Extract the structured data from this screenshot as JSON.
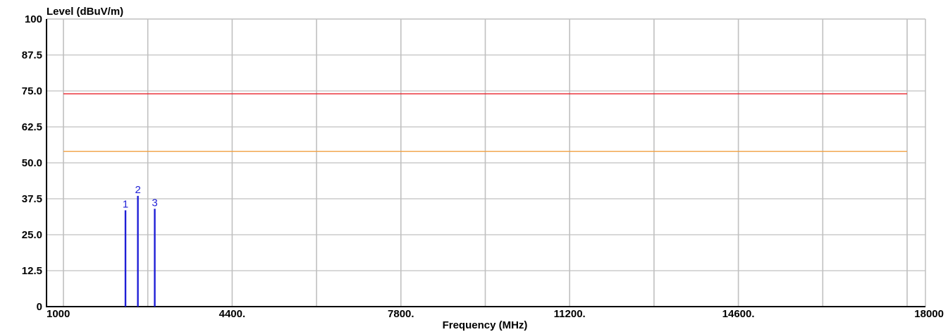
{
  "chart_data": {
    "type": "bar",
    "xlabel": "Frequency (MHz)",
    "ylabel": "Level (dBuV/m)",
    "xlim": [
      1000,
      18000
    ],
    "ylim": [
      0,
      100
    ],
    "grid": true,
    "x_tick_labels": [
      {
        "value": 1000,
        "label": "1000"
      },
      {
        "value": 4400,
        "label": "4400."
      },
      {
        "value": 7800,
        "label": "7800."
      },
      {
        "value": 11200,
        "label": "11200."
      },
      {
        "value": 14600,
        "label": "14600."
      },
      {
        "value": 18000,
        "label": "18000"
      }
    ],
    "x_gridlines": [
      1000,
      2700,
      4400,
      6100,
      7800,
      9500,
      11200,
      12900,
      14600,
      16300,
      18000
    ],
    "y_tick_labels": [
      {
        "value": 0,
        "label": "0"
      },
      {
        "value": 12.5,
        "label": "12.5"
      },
      {
        "value": 25,
        "label": "25.0"
      },
      {
        "value": 37.5,
        "label": "37.5"
      },
      {
        "value": 50,
        "label": "50.0"
      },
      {
        "value": 62.5,
        "label": "62.5"
      },
      {
        "value": 75,
        "label": "75.0"
      },
      {
        "value": 87.5,
        "label": "87.5"
      },
      {
        "value": 100,
        "label": "100"
      }
    ],
    "limit_lines": [
      {
        "value": 74,
        "color": "#e8202a"
      },
      {
        "value": 54,
        "color": "#f0a040"
      }
    ],
    "markers": [
      {
        "label": "1",
        "x": 2250,
        "y": 33.5
      },
      {
        "label": "2",
        "x": 2500,
        "y": 38.5
      },
      {
        "label": "3",
        "x": 2840,
        "y": 34
      }
    ],
    "colors": {
      "marker": "#1f1fd6",
      "grid": "#c0c0c0",
      "axis": "#000000"
    }
  }
}
